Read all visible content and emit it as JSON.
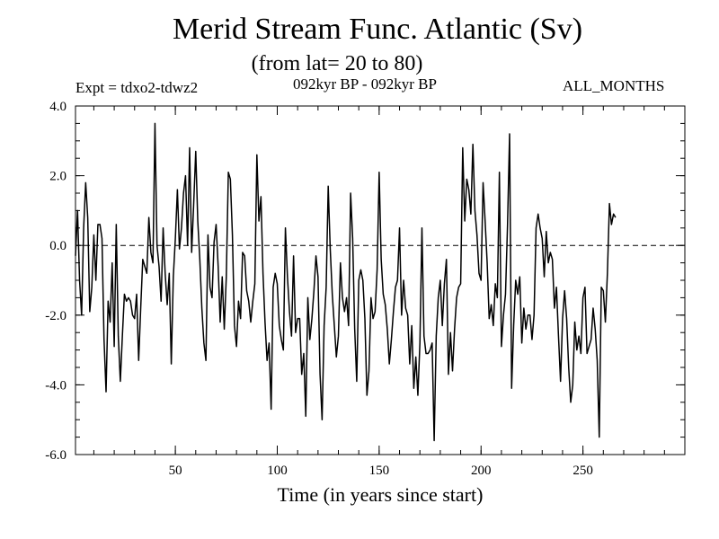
{
  "header": {
    "title": "Merid Stream Func. Atlantic (Sv)",
    "subtitle": "(from lat= 20 to 80)",
    "experiment": "Expt = tdxo2-tdwz2",
    "period": "092kyr BP - 092kyr BP",
    "months": "ALL_MONTHS"
  },
  "chart_data": {
    "type": "line",
    "title": "Merid Stream Func. Atlantic (Sv)",
    "subtitle": "(from lat= 20 to 80)",
    "xlabel": "Time (in years since start)",
    "ylabel": "",
    "xlim": [
      1,
      300
    ],
    "ylim": [
      -6.0,
      4.0
    ],
    "x_ticks": [
      50,
      100,
      150,
      200,
      250
    ],
    "y_ticks": [
      -6.0,
      -4.0,
      -2.0,
      0.0,
      2.0,
      4.0
    ],
    "y_tick_labels": [
      "-6.0",
      "-4.0",
      "-2.0",
      "0.0",
      "2.0",
      "4.0"
    ],
    "reference_line": {
      "y": 0.0,
      "style": "dashed"
    },
    "grid": false,
    "line_color": "#000000",
    "series": [
      {
        "x_start": 1,
        "x_step": 1,
        "values": [
          -0.3,
          1.0,
          -1.0,
          -2.0,
          0.5,
          1.8,
          0.8,
          -1.9,
          -1.2,
          0.3,
          -1.0,
          0.6,
          0.6,
          0.2,
          -2.7,
          -4.2,
          -1.6,
          -2.2,
          -0.5,
          -2.9,
          0.6,
          -2.6,
          -3.9,
          -2.6,
          -1.4,
          -1.6,
          -1.5,
          -1.6,
          -2.0,
          -2.1,
          -1.4,
          -3.3,
          -1.8,
          -0.4,
          -0.6,
          -0.8,
          0.8,
          -0.2,
          -0.5,
          3.5,
          0.0,
          -0.6,
          -1.6,
          0.5,
          -0.8,
          -1.7,
          -0.8,
          -3.4,
          -0.9,
          0.2,
          1.6,
          -0.1,
          0.5,
          1.5,
          2.0,
          0.0,
          2.8,
          -0.2,
          1.2,
          2.7,
          0.7,
          -0.4,
          -1.8,
          -2.8,
          -3.3,
          0.3,
          -1.2,
          -1.5,
          0.1,
          0.6,
          -0.6,
          -2.2,
          -0.9,
          -2.4,
          -0.9,
          2.1,
          1.9,
          0.3,
          -2.3,
          -2.9,
          -1.6,
          -2.1,
          -0.2,
          -0.3,
          -1.3,
          -1.6,
          -2.2,
          -1.6,
          -1.1,
          2.6,
          0.7,
          1.4,
          -0.8,
          -2.2,
          -3.3,
          -2.8,
          -4.7,
          -1.2,
          -0.8,
          -1.1,
          -2.3,
          -2.7,
          -3.0,
          0.5,
          -0.9,
          -1.9,
          -2.6,
          -0.3,
          -2.5,
          -2.1,
          -2.1,
          -3.7,
          -3.1,
          -4.9,
          -1.5,
          -2.7,
          -2.1,
          -1.3,
          -0.3,
          -0.9,
          -3.7,
          -5.0,
          -2.3,
          -1.2,
          1.7,
          -0.1,
          -1.4,
          -2.3,
          -3.2,
          -2.6,
          -0.5,
          -1.5,
          -1.9,
          -1.5,
          -2.3,
          1.5,
          0.2,
          -2.4,
          -3.9,
          -1.0,
          -0.7,
          -1.0,
          -2.1,
          -4.3,
          -3.6,
          -1.5,
          -2.1,
          -1.9,
          -0.7,
          2.1,
          -0.4,
          -1.4,
          -1.7,
          -2.4,
          -3.4,
          -2.7,
          -1.9,
          -1.2,
          -1.0,
          0.5,
          -2.0,
          -1.0,
          -1.8,
          -2.0,
          -3.4,
          -2.3,
          -4.1,
          -3.2,
          -4.3,
          -2.8,
          0.5,
          -2.6,
          -3.1,
          -3.1,
          -3.0,
          -2.8,
          -5.6,
          -2.6,
          -1.5,
          -1.0,
          -2.3,
          -1.1,
          -0.4,
          -3.7,
          -2.5,
          -3.6,
          -2.4,
          -1.5,
          -1.2,
          -1.1,
          2.8,
          0.7,
          1.9,
          1.6,
          0.9,
          2.9,
          1.0,
          0.3,
          -0.8,
          -1.0,
          1.8,
          0.7,
          -0.5,
          -2.1,
          -1.7,
          -2.3,
          -1.1,
          -1.5,
          2.1,
          -2.9,
          -2.0,
          -1.4,
          0.6,
          3.2,
          -4.1,
          -2.3,
          -1.0,
          -1.4,
          -0.9,
          -2.8,
          -1.8,
          -2.4,
          -2.0,
          -2.0,
          -2.7,
          -2.0,
          0.5,
          0.9,
          0.5,
          0.2,
          -0.9,
          0.4,
          -0.5,
          -0.2,
          -0.4,
          -1.8,
          -1.2,
          -2.6,
          -3.9,
          -2.1,
          -1.3,
          -2.1,
          -3.5,
          -4.5,
          -4.0,
          -2.2,
          -3.0,
          -2.6,
          -3.1,
          -1.5,
          -1.2,
          -3.1,
          -2.9,
          -2.7,
          -1.8,
          -2.4,
          -3.3,
          -5.5,
          -1.2,
          -1.3,
          -2.2,
          -0.8,
          1.2,
          0.6,
          0.9,
          0.8
        ]
      }
    ]
  }
}
